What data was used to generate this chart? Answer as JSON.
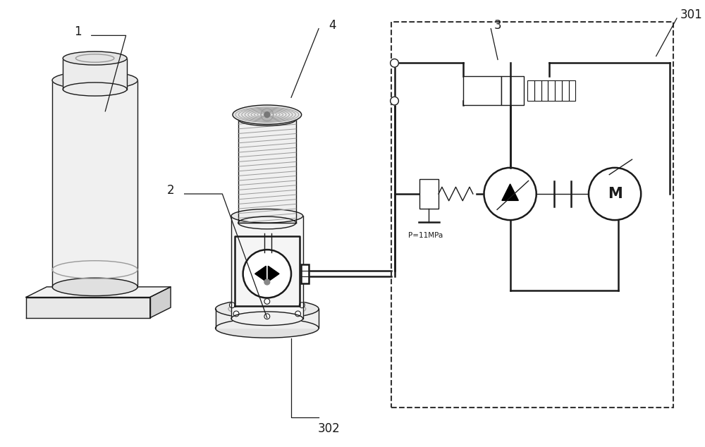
{
  "bg_color": "#ffffff",
  "line_color": "#1a1a1a",
  "gray_color": "#999999",
  "light_gray": "#dddddd",
  "dark_gray": "#555555",
  "P_label": "P=11MPa",
  "fig_width": 10.0,
  "fig_height": 6.34
}
